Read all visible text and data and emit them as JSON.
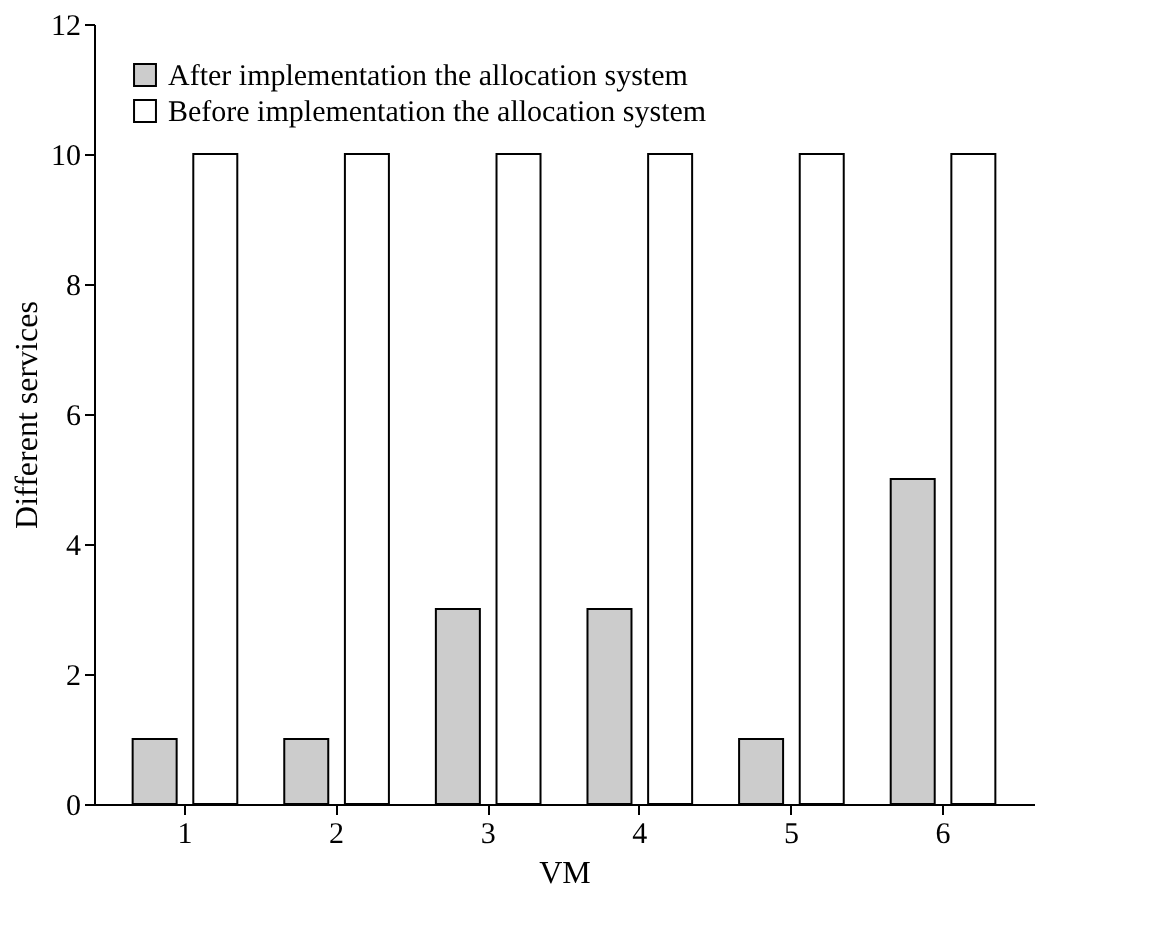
{
  "chart_data": {
    "type": "bar",
    "xlabel": "VM",
    "ylabel": "Different services",
    "categories": [
      "1",
      "2",
      "3",
      "4",
      "5",
      "6"
    ],
    "series": [
      {
        "name": "After implementation the allocation system",
        "color": "#cccccc",
        "values": [
          1,
          1,
          3,
          3,
          1,
          5
        ]
      },
      {
        "name": "Before implementation the allocation system",
        "color": "#ffffff",
        "values": [
          10,
          10,
          10,
          10,
          10,
          10
        ]
      }
    ],
    "ylim": [
      0,
      12
    ],
    "yticks": [
      0,
      2,
      4,
      6,
      8,
      10,
      12
    ],
    "grid": false,
    "legend": "top left"
  }
}
